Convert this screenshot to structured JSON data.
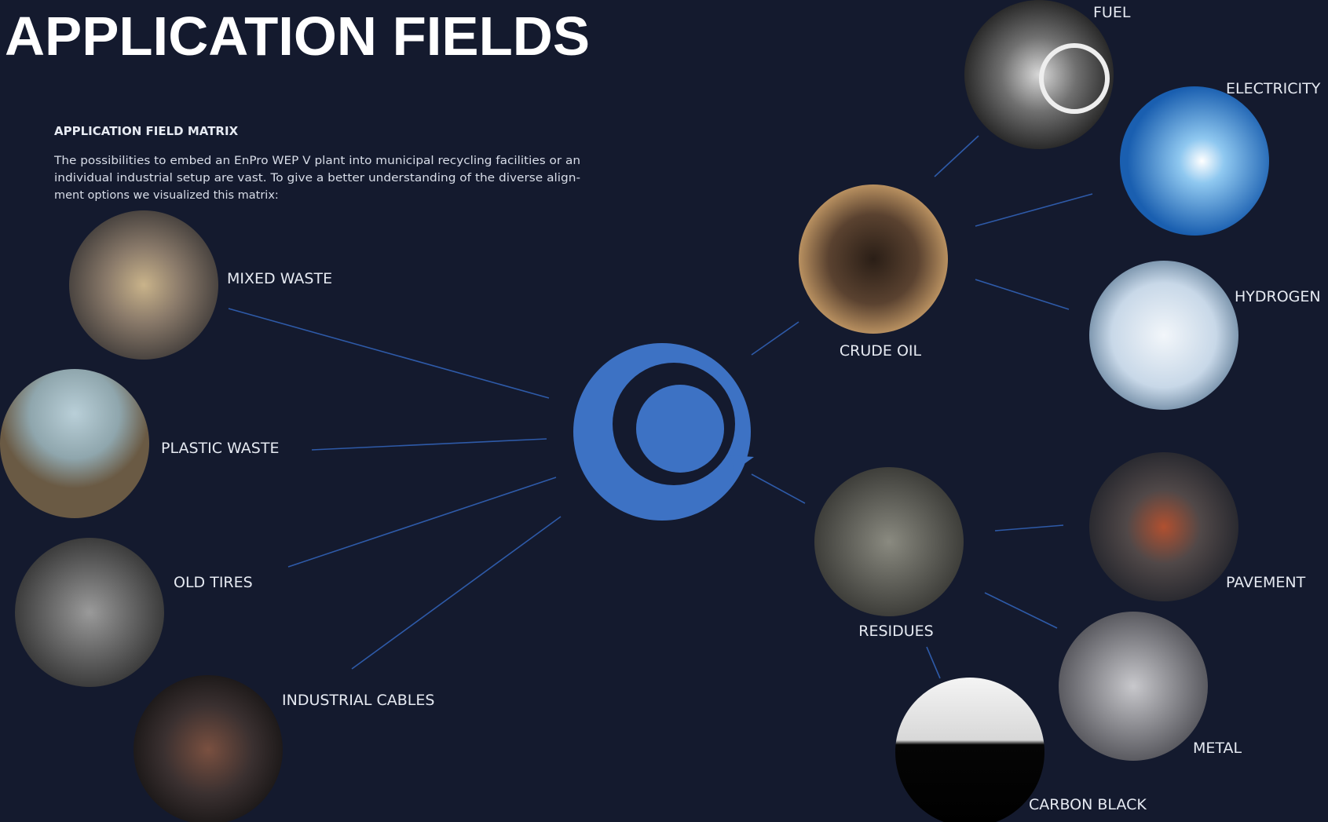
{
  "header": {
    "title": "APPLICATION FIELDS"
  },
  "matrix": {
    "heading": "APPLICATION FIELD MATRIX",
    "text": [
      "The possibilities to embed an EnPro WEP V plant into municipal recycling facilities or an",
      "individual industrial setup are vast. To give a better understanding of the diverse align-",
      "ment options we visualized this matrix:"
    ]
  },
  "nodes": [
    {
      "label": "MIXED WASTE"
    },
    {
      "label": "PLASTIC WASTE"
    },
    {
      "label": "OLD TIRES"
    },
    {
      "label": "INDUSTRIAL CABLES"
    },
    {
      "label": "CRUDE OIL"
    },
    {
      "label": "FUEL"
    },
    {
      "label": "ELECTRICITY"
    },
    {
      "label": "HYDROGEN"
    },
    {
      "label": "RESIDUES"
    },
    {
      "label": "PAVEMENT"
    },
    {
      "label": "METAL"
    },
    {
      "label": "CARBON BLACK"
    }
  ]
}
